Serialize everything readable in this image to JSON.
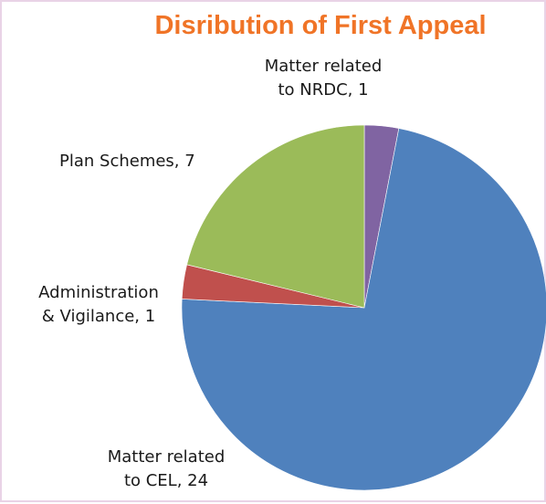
{
  "chart_data": {
    "type": "pie",
    "title": "Disribution of First Appeal",
    "categories": [
      "Matter related to NRDC",
      "Matter related to CEL",
      "Administration & Vigilance",
      "Plan Schemes"
    ],
    "values": [
      1,
      24,
      1,
      7
    ],
    "colors": [
      "#8064a2",
      "#4f81bd",
      "#c0504d",
      "#9bbb59"
    ],
    "data_labels": [
      [
        "Matter related",
        "to NRDC, 1"
      ],
      [
        "Matter related",
        "to CEL, 24"
      ],
      [
        "Administration",
        "& Vigilance, 1"
      ],
      [
        "Plan Schemes, 7"
      ]
    ],
    "legend": "none"
  }
}
